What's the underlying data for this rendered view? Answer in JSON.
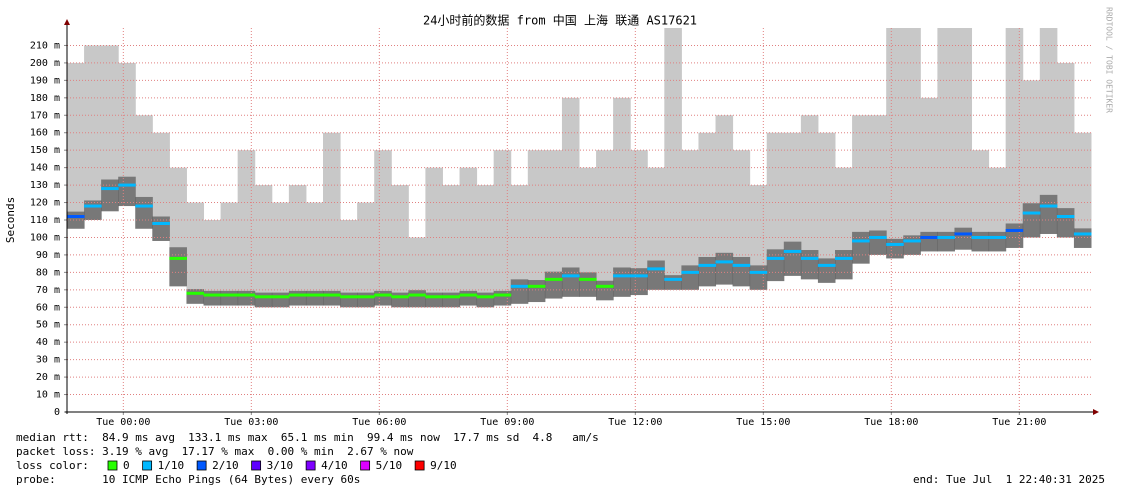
{
  "chart_data": {
    "type": "smokeping",
    "title": "24小时前的数据 from 中国 上海 联通 AS17621",
    "y_label": "Seconds",
    "watermark": "RRDTOOL / TOBI OETIKER",
    "xlim": [
      -1.32,
      22.68
    ],
    "xticks": [
      {
        "value": 0,
        "label": "Tue 00:00"
      },
      {
        "value": 3,
        "label": "Tue 03:00"
      },
      {
        "value": 6,
        "label": "Tue 06:00"
      },
      {
        "value": 9,
        "label": "Tue 09:00"
      },
      {
        "value": 12,
        "label": "Tue 12:00"
      },
      {
        "value": 15,
        "label": "Tue 15:00"
      },
      {
        "value": 18,
        "label": "Tue 18:00"
      },
      {
        "value": 21,
        "label": "Tue 21:00"
      }
    ],
    "ylim": [
      0,
      0.22
    ],
    "yticks": [
      0,
      {
        "value": 0.01,
        "label": "10 m"
      },
      {
        "value": 0.02,
        "label": "20 m"
      },
      {
        "value": 0.03,
        "label": "30 m"
      },
      {
        "value": 0.04,
        "label": "40 m"
      },
      {
        "value": 0.05,
        "label": "50 m"
      },
      {
        "value": 0.06,
        "label": "60 m"
      },
      {
        "value": 0.07,
        "label": "70 m"
      },
      {
        "value": 0.08,
        "label": "80 m"
      },
      {
        "value": 0.09,
        "label": "90 m"
      },
      {
        "value": 0.1,
        "label": "100 m"
      },
      {
        "value": 0.11,
        "label": "110 m"
      },
      {
        "value": 0.12,
        "label": "120 m"
      },
      {
        "value": 0.13,
        "label": "130 m"
      },
      {
        "value": 0.14,
        "label": "140 m"
      },
      {
        "value": 0.15,
        "label": "150 m"
      },
      {
        "value": 0.16,
        "label": "160 m"
      },
      {
        "value": 0.17,
        "label": "170 m"
      },
      {
        "value": 0.18,
        "label": "180 m"
      },
      {
        "value": 0.19,
        "label": "190 m"
      },
      {
        "value": 0.2,
        "label": "200 m"
      },
      {
        "value": 0.21,
        "label": "210 m"
      }
    ],
    "grid": true,
    "smoke_color": "#c8c8c8",
    "x": [
      -1.12,
      -0.72,
      -0.32,
      0.08,
      0.48,
      0.88,
      1.28,
      1.68,
      2.08,
      2.48,
      2.88,
      3.28,
      3.68,
      4.08,
      4.48,
      4.88,
      5.28,
      5.68,
      6.08,
      6.48,
      6.88,
      7.28,
      7.68,
      8.08,
      8.48,
      8.88,
      9.28,
      9.68,
      10.08,
      10.48,
      10.88,
      11.28,
      11.68,
      12.08,
      12.48,
      12.88,
      13.28,
      13.68,
      14.08,
      14.48,
      14.88,
      15.28,
      15.68,
      16.08,
      16.48,
      16.88,
      17.28,
      17.68,
      18.08,
      18.48,
      18.88,
      19.28,
      19.68,
      20.08,
      20.48,
      20.88,
      21.28,
      21.68,
      22.08,
      22.48
    ],
    "median": [
      0.112,
      0.118,
      0.128,
      0.13,
      0.118,
      0.108,
      0.088,
      0.068,
      0.067,
      0.067,
      0.067,
      0.066,
      0.066,
      0.067,
      0.067,
      0.067,
      0.066,
      0.066,
      0.067,
      0.066,
      0.067,
      0.066,
      0.066,
      0.067,
      0.066,
      0.067,
      0.072,
      0.072,
      0.076,
      0.078,
      0.076,
      0.072,
      0.078,
      0.078,
      0.082,
      0.076,
      0.08,
      0.084,
      0.086,
      0.084,
      0.08,
      0.088,
      0.092,
      0.088,
      0.084,
      0.088,
      0.098,
      0.1,
      0.096,
      0.098,
      0.1,
      0.1,
      0.102,
      0.1,
      0.1,
      0.104,
      0.114,
      0.118,
      0.112,
      0.102
    ],
    "min": [
      0.105,
      0.11,
      0.115,
      0.118,
      0.105,
      0.098,
      0.072,
      0.062,
      0.061,
      0.061,
      0.061,
      0.06,
      0.06,
      0.061,
      0.061,
      0.061,
      0.06,
      0.06,
      0.061,
      0.06,
      0.06,
      0.06,
      0.06,
      0.061,
      0.06,
      0.061,
      0.062,
      0.063,
      0.065,
      0.066,
      0.066,
      0.064,
      0.066,
      0.067,
      0.07,
      0.07,
      0.07,
      0.072,
      0.073,
      0.072,
      0.07,
      0.075,
      0.078,
      0.076,
      0.074,
      0.076,
      0.085,
      0.09,
      0.088,
      0.09,
      0.092,
      0.092,
      0.093,
      0.092,
      0.092,
      0.094,
      0.1,
      0.102,
      0.1,
      0.094
    ],
    "max": [
      0.2,
      0.21,
      0.21,
      0.2,
      0.17,
      0.16,
      0.14,
      0.12,
      0.11,
      0.12,
      0.15,
      0.13,
      0.12,
      0.13,
      0.12,
      0.16,
      0.11,
      0.12,
      0.15,
      0.13,
      0.1,
      0.14,
      0.13,
      0.14,
      0.13,
      0.15,
      0.13,
      0.15,
      0.15,
      0.18,
      0.14,
      0.15,
      0.18,
      0.15,
      0.14,
      0.22,
      0.15,
      0.16,
      0.17,
      0.15,
      0.13,
      0.16,
      0.16,
      0.17,
      0.16,
      0.14,
      0.17,
      0.17,
      0.22,
      0.22,
      0.18,
      0.22,
      0.22,
      0.15,
      0.14,
      0.22,
      0.19,
      0.22,
      0.2,
      0.16
    ],
    "loss": [
      2,
      1,
      1,
      1,
      1,
      1,
      0,
      0,
      0,
      0,
      0,
      0,
      0,
      0,
      0,
      0,
      0,
      0,
      0,
      0,
      0,
      0,
      0,
      0,
      0,
      0,
      1,
      0,
      0,
      1,
      0,
      0,
      1,
      1,
      1,
      1,
      1,
      1,
      1,
      1,
      1,
      1,
      1,
      1,
      1,
      1,
      1,
      1,
      1,
      1,
      2,
      1,
      2,
      1,
      1,
      2,
      1,
      1,
      1,
      1
    ],
    "loss_colors": [
      {
        "value": 0,
        "label": "0",
        "color": "#26ff00"
      },
      {
        "value": 1,
        "label": "1/10",
        "color": "#00b8ff"
      },
      {
        "value": 2,
        "label": "2/10",
        "color": "#0059ff"
      },
      {
        "value": 3,
        "label": "3/10",
        "color": "#5e00ff"
      },
      {
        "value": 4,
        "label": "4/10",
        "color": "#7e00ff"
      },
      {
        "value": 5,
        "label": "5/10",
        "color": "#dd00ff"
      },
      {
        "value": 9,
        "label": "9/10",
        "color": "#ff0000"
      }
    ],
    "stats": {
      "median_rtt": "median rtt:  84.9 ms avg  133.1 ms max  65.1 ms min  99.4 ms now  17.7 ms sd  4.8   am/s",
      "packet_loss": "packet loss: 3.19 % avg  17.17 % max  0.00 % min  2.67 % now",
      "loss_color_label": "loss color:",
      "probe": "probe:       10 ICMP Echo Pings (64 Bytes) every 60s",
      "end": "end: Tue Jul  1 22:40:31 2025"
    }
  }
}
